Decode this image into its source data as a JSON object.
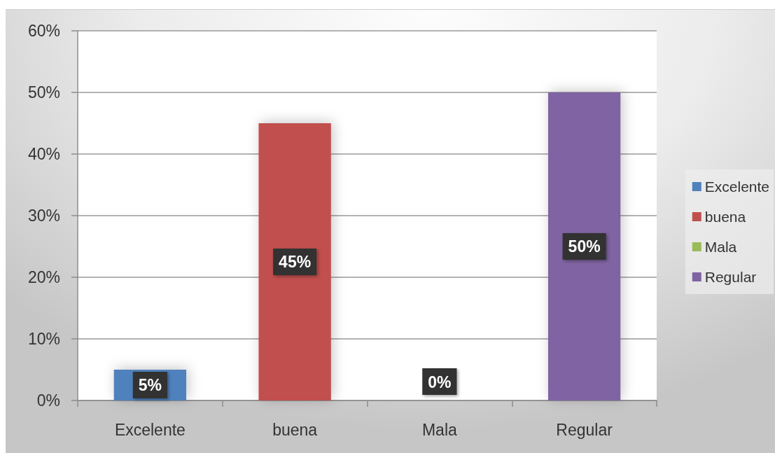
{
  "chart_data": {
    "type": "bar",
    "categories": [
      "Excelente",
      "buena",
      "Mala",
      "Regular"
    ],
    "series": [
      {
        "name": "Excelente",
        "color": "#4f81bd",
        "values": [
          5,
          null,
          null,
          null
        ],
        "value_labels": [
          "5%",
          null,
          null,
          null
        ]
      },
      {
        "name": "buena",
        "color": "#c0504d",
        "values": [
          null,
          45,
          null,
          null
        ],
        "value_labels": [
          null,
          "45%",
          null,
          null
        ]
      },
      {
        "name": "Mala",
        "color": "#9bbb59",
        "values": [
          null,
          null,
          0,
          null
        ],
        "value_labels": [
          null,
          null,
          "0%",
          null
        ]
      },
      {
        "name": "Regular",
        "color": "#8064a2",
        "values": [
          null,
          null,
          null,
          50
        ],
        "value_labels": [
          null,
          null,
          null,
          "50%"
        ]
      }
    ],
    "ylim": [
      0,
      60
    ],
    "yticks": [
      {
        "value": 0,
        "label": "0%"
      },
      {
        "value": 10,
        "label": "10%"
      },
      {
        "value": 20,
        "label": "20%"
      },
      {
        "value": 30,
        "label": "30%"
      },
      {
        "value": 40,
        "label": "40%"
      },
      {
        "value": 50,
        "label": "50%"
      },
      {
        "value": 60,
        "label": "60%"
      }
    ],
    "grid": "y",
    "legend": "right"
  }
}
